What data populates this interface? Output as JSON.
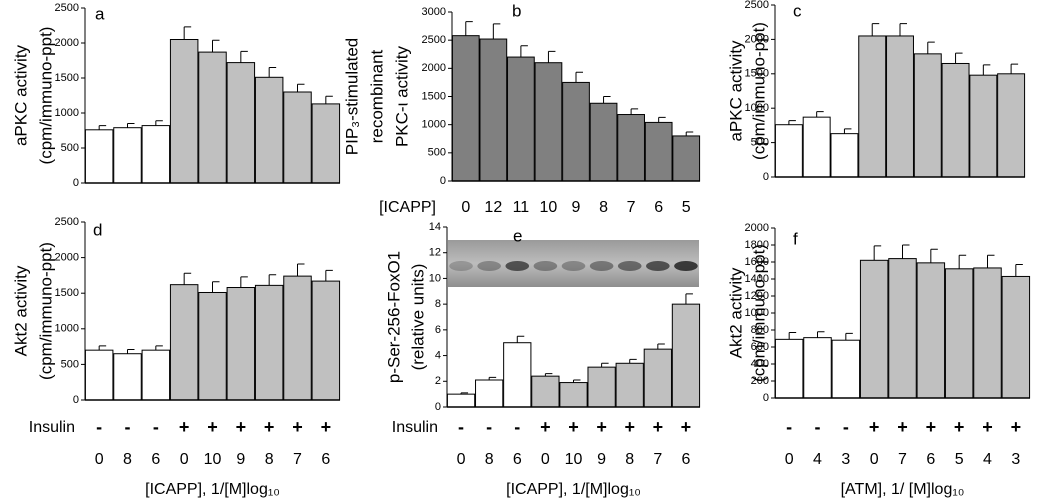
{
  "chart_data": [
    {
      "type": "bar",
      "panel": "a",
      "ylabel": [
        "aPKC  activity",
        "(cpm/immuno-ppt)"
      ],
      "values": [
        760,
        790,
        820,
        2050,
        1870,
        1720,
        1510,
        1300,
        1130
      ],
      "errors": [
        60,
        60,
        70,
        180,
        170,
        160,
        140,
        110,
        110
      ],
      "bar_colors": [
        "#ffffff",
        "#ffffff",
        "#ffffff",
        "#c0c0c0",
        "#c0c0c0",
        "#c0c0c0",
        "#c0c0c0",
        "#c0c0c0",
        "#c0c0c0"
      ],
      "ylim": [
        0,
        2500
      ],
      "yticks": [
        0,
        500,
        1000,
        1500,
        2000,
        2500
      ]
    },
    {
      "type": "bar",
      "panel": "b",
      "ylabel": [
        "PIP₃-stimulated",
        "recombinant",
        "PKC-ι activity"
      ],
      "category_label": "[ICAPP]",
      "categories": [
        "0",
        "12",
        "11",
        "10",
        "9",
        "8",
        "7",
        "6",
        "5"
      ],
      "values": [
        2580,
        2520,
        2200,
        2100,
        1750,
        1380,
        1180,
        1040,
        800
      ],
      "errors": [
        250,
        270,
        200,
        200,
        180,
        120,
        100,
        90,
        70
      ],
      "bar_colors": [
        "#808080",
        "#808080",
        "#808080",
        "#808080",
        "#808080",
        "#808080",
        "#808080",
        "#808080",
        "#808080"
      ],
      "ylim": [
        0,
        3000
      ],
      "yticks": [
        0,
        500,
        1000,
        1500,
        2000,
        2500,
        3000
      ]
    },
    {
      "type": "bar",
      "panel": "c",
      "ylabel": [
        "aPKC  activity",
        "(cpm/immuno-ppt)"
      ],
      "values": [
        760,
        870,
        630,
        2050,
        2050,
        1790,
        1650,
        1480,
        1500
      ],
      "errors": [
        60,
        80,
        70,
        180,
        180,
        170,
        150,
        150,
        140
      ],
      "bar_colors": [
        "#ffffff",
        "#ffffff",
        "#ffffff",
        "#c0c0c0",
        "#c0c0c0",
        "#c0c0c0",
        "#c0c0c0",
        "#c0c0c0",
        "#c0c0c0"
      ],
      "ylim": [
        0,
        2500
      ],
      "yticks": [
        0,
        500,
        1000,
        1500,
        2000,
        2500
      ]
    },
    {
      "type": "bar",
      "panel": "d",
      "ylabel": [
        "Akt2  activity",
        "(cpm/immuno-ppt)"
      ],
      "treatment": {
        "label": "Insulin",
        "values": [
          "-",
          "-",
          "-",
          "+",
          "+",
          "+",
          "+",
          "+",
          "+"
        ]
      },
      "categories": [
        "0",
        "8",
        "6",
        "0",
        "10",
        "9",
        "8",
        "7",
        "6"
      ],
      "xlabel": "[ICAPP],  1/[M]log₁₀",
      "values": [
        700,
        650,
        700,
        1620,
        1510,
        1580,
        1610,
        1740,
        1670
      ],
      "errors": [
        60,
        60,
        60,
        160,
        150,
        150,
        150,
        170,
        150
      ],
      "bar_colors": [
        "#ffffff",
        "#ffffff",
        "#ffffff",
        "#c0c0c0",
        "#c0c0c0",
        "#c0c0c0",
        "#c0c0c0",
        "#c0c0c0",
        "#c0c0c0"
      ],
      "ylim": [
        0,
        2500
      ],
      "yticks": [
        0,
        500,
        1000,
        1500,
        2000,
        2500
      ]
    },
    {
      "type": "bar",
      "panel": "e",
      "ylabel": [
        "p-Ser-256-FoxO1",
        "(relative units)"
      ],
      "treatment": {
        "label": "Insulin",
        "values": [
          "-",
          "-",
          "-",
          "+",
          "+",
          "+",
          "+",
          "+",
          "+"
        ]
      },
      "categories": [
        "0",
        "8",
        "6",
        "0",
        "10",
        "9",
        "8",
        "7",
        "6"
      ],
      "xlabel": "[ICAPP],  1/[M]log₁₀",
      "values": [
        1.0,
        2.1,
        5.0,
        2.4,
        1.9,
        3.1,
        3.4,
        4.5,
        8.0
      ],
      "errors": [
        0.1,
        0.2,
        0.5,
        0.2,
        0.2,
        0.3,
        0.3,
        0.4,
        0.8
      ],
      "bar_colors": [
        "#ffffff",
        "#ffffff",
        "#ffffff",
        "#c0c0c0",
        "#c0c0c0",
        "#c0c0c0",
        "#c0c0c0",
        "#c0c0c0",
        "#c0c0c0"
      ],
      "ylim": [
        0,
        14
      ],
      "yticks": [
        0,
        2,
        4,
        6,
        8,
        10,
        12,
        14
      ]
    },
    {
      "type": "bar",
      "panel": "f",
      "ylabel": [
        "Akt2  activity",
        "(cpm/immuno-ppt)"
      ],
      "treatment": {
        "values": [
          "-",
          "-",
          "-",
          "+",
          "+",
          "+",
          "+",
          "+",
          "+"
        ]
      },
      "categories": [
        "0",
        "4",
        "3",
        "0",
        "7",
        "6",
        "5",
        "4",
        "3"
      ],
      "xlabel": "[ATM], 1/ [M]log₁₀",
      "values": [
        690,
        710,
        680,
        1620,
        1640,
        1590,
        1520,
        1530,
        1430
      ],
      "errors": [
        80,
        70,
        80,
        170,
        160,
        160,
        160,
        150,
        140
      ],
      "bar_colors": [
        "#ffffff",
        "#ffffff",
        "#ffffff",
        "#c0c0c0",
        "#c0c0c0",
        "#c0c0c0",
        "#c0c0c0",
        "#c0c0c0",
        "#c0c0c0"
      ],
      "ylim": [
        0,
        2000
      ],
      "yticks": [
        0,
        200,
        400,
        600,
        800,
        1000,
        1200,
        1400,
        1600,
        1800,
        2000
      ]
    }
  ]
}
